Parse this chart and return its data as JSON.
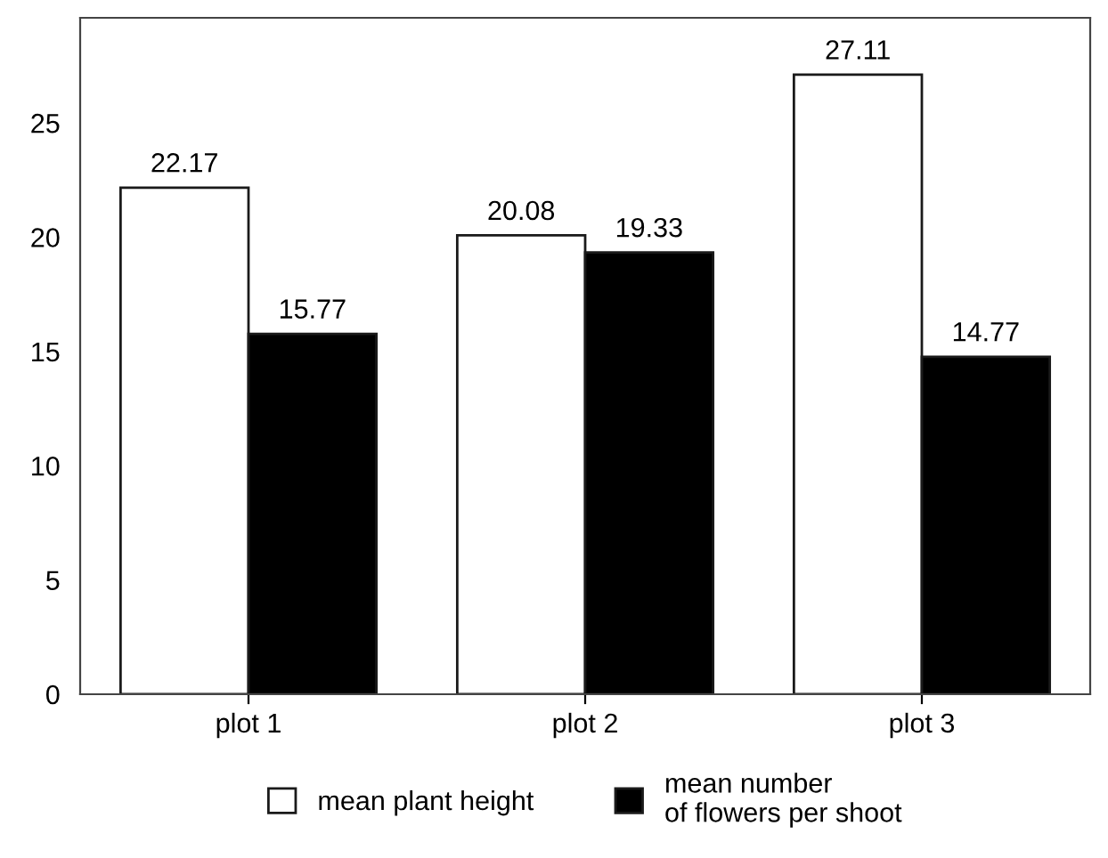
{
  "chart_data": {
    "type": "bar",
    "categories": [
      "plot 1",
      "plot 2",
      "plot 3"
    ],
    "series": [
      {
        "name": "mean plant height",
        "color": "#ffffff",
        "values": [
          22.17,
          20.08,
          27.11
        ]
      },
      {
        "name": "mean number\nof flowers per shoot",
        "color": "#000000",
        "values": [
          15.77,
          19.33,
          14.77
        ]
      }
    ],
    "ylim": [
      0,
      29.6
    ],
    "yticks": [
      0,
      5,
      10,
      15,
      20,
      25
    ],
    "data_labels": true,
    "grid": false,
    "legend": "bottom"
  }
}
